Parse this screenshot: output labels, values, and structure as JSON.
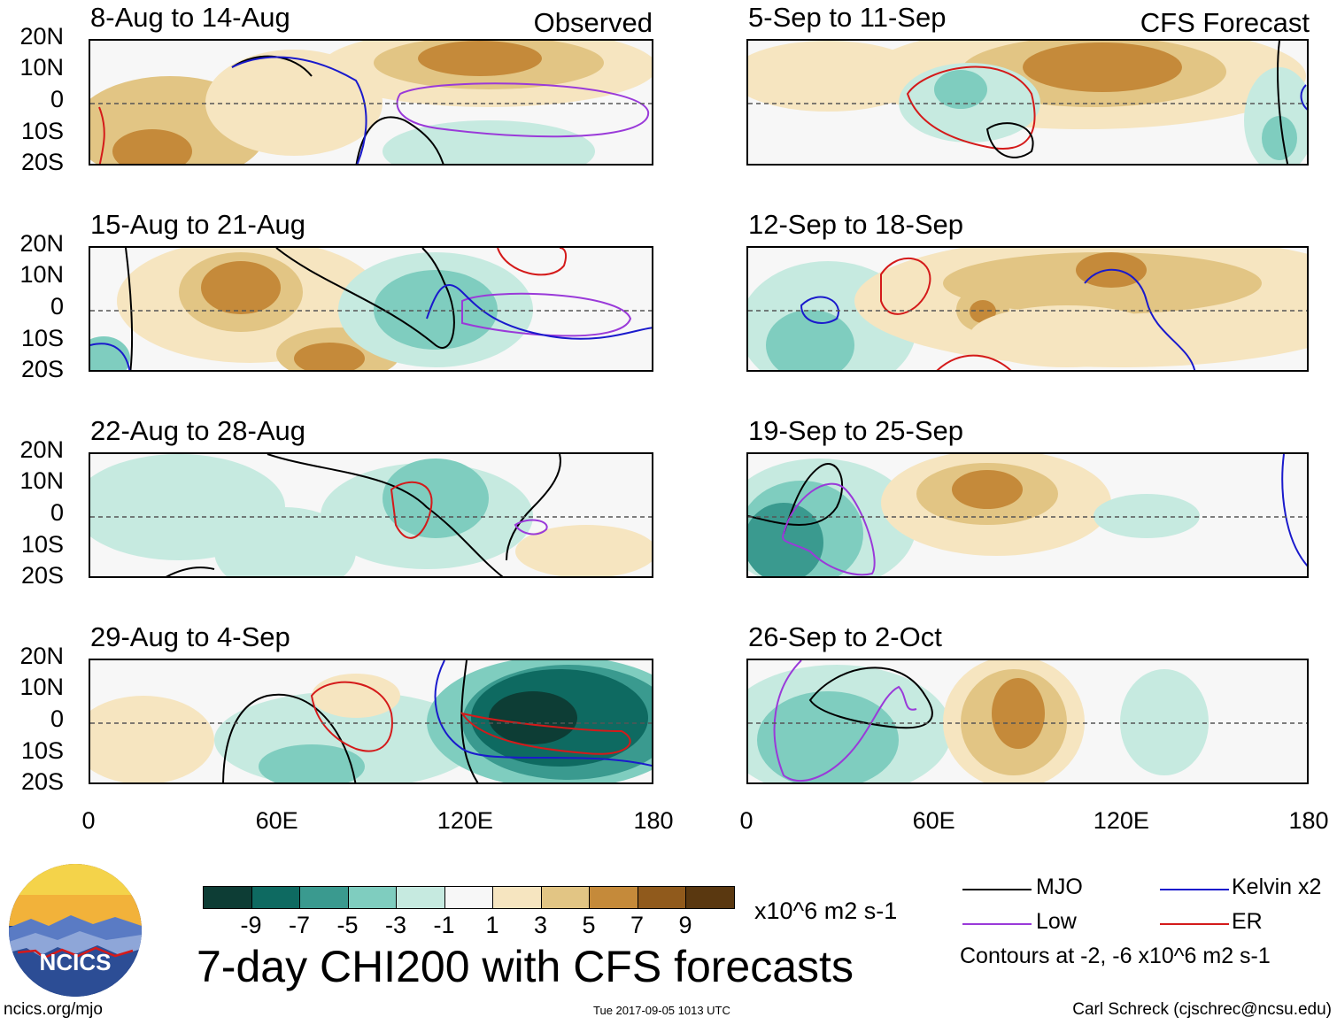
{
  "panels": [
    {
      "title": "8-Aug to 14-Aug",
      "tag": "Observed"
    },
    {
      "title": "5-Sep to 11-Sep",
      "tag": "CFS Forecast"
    },
    {
      "title": "15-Aug to 21-Aug",
      "tag": ""
    },
    {
      "title": "12-Sep to 18-Sep",
      "tag": ""
    },
    {
      "title": "22-Aug to 28-Aug",
      "tag": ""
    },
    {
      "title": "19-Sep to 25-Sep",
      "tag": ""
    },
    {
      "title": "29-Aug to 4-Sep",
      "tag": ""
    },
    {
      "title": "26-Sep to 2-Oct",
      "tag": ""
    }
  ],
  "lat_labels": [
    "20N",
    "10N",
    "0",
    "10S",
    "20S"
  ],
  "lon_labels": [
    "0",
    "60E",
    "120E",
    "180"
  ],
  "colorbar": {
    "colors": [
      "#0d3d35",
      "#0e6a61",
      "#3a9a8f",
      "#7fcdbf",
      "#c6eae0",
      "#f7f7f7",
      "#f6e5c0",
      "#e2c584",
      "#c58a3a",
      "#905a1c",
      "#5a3810"
    ],
    "labels": [
      "-9",
      "-7",
      "-5",
      "-3",
      "-1",
      "1",
      "3",
      "5",
      "7",
      "9"
    ],
    "units": "x10^6 m2 s-1"
  },
  "title": "7-day CHI200 with CFS forecasts",
  "legend": {
    "items": [
      {
        "label": "MJO",
        "color": "#000000"
      },
      {
        "label": "Kelvin x2",
        "color": "#1a1acc"
      },
      {
        "label": "Low",
        "color": "#9a3ad9"
      },
      {
        "label": "ER",
        "color": "#d41a1a"
      }
    ],
    "contours_note": "Contours at -2, -6 x10^6 m2 s-1"
  },
  "logo_text": "NCICS",
  "footer": {
    "url": "ncics.org/mjo",
    "timestamp": "Tue 2017-09-05 1013 UTC",
    "author": "Carl Schreck (cjschrec@ncsu.edu)"
  }
}
